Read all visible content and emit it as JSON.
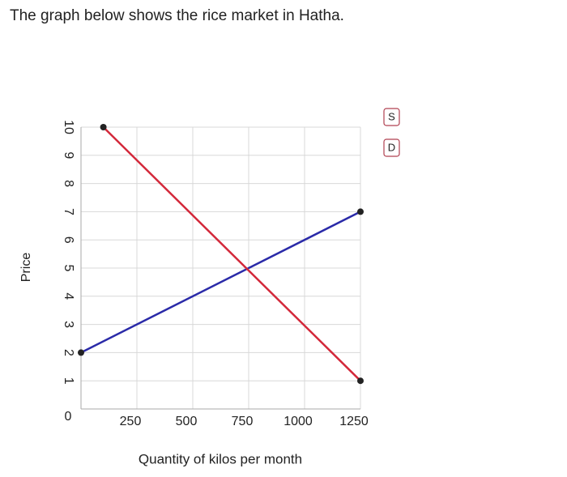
{
  "chart_data": {
    "type": "line",
    "title": "The graph below shows the rice market in Hatha.",
    "xlabel": "Quantity of kilos per month",
    "ylabel": "Price",
    "xlim": [
      0,
      1250
    ],
    "ylim": [
      0,
      10
    ],
    "xticks": [
      250,
      500,
      750,
      1000,
      1250
    ],
    "yticks": [
      0,
      1,
      2,
      3,
      4,
      5,
      6,
      7,
      8,
      9,
      10
    ],
    "grid": true,
    "series": [
      {
        "name": "S",
        "color": "#2a2aa8",
        "x": [
          0,
          1250
        ],
        "values": [
          2,
          7
        ]
      },
      {
        "name": "D",
        "color": "#d3283a",
        "x": [
          100,
          1250
        ],
        "values": [
          10,
          1
        ]
      }
    ]
  }
}
